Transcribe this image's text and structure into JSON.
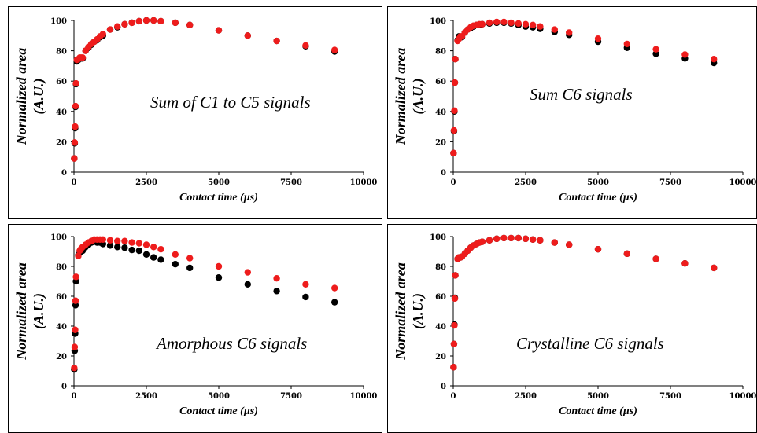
{
  "colors": {
    "series_black": "#000000",
    "series_red": "#ee1c1c"
  },
  "chart_data": [
    {
      "type": "scatter",
      "title": "",
      "annotation": "Sum of C1 to C5 signals",
      "xlabel": "Contact time (µs)",
      "ylabel": [
        "Normalized area",
        "(A.U.)"
      ],
      "xlim": [
        0,
        10000
      ],
      "ylim": [
        0,
        100
      ],
      "xticks": [
        "0",
        "2500",
        "5000",
        "7500",
        "10000"
      ],
      "yticks": [
        "0",
        "20",
        "40",
        "60",
        "80",
        "100"
      ],
      "grid": false,
      "series": [
        {
          "color": "#000000",
          "points": [
            [
              10,
              9
            ],
            [
              25,
              19
            ],
            [
              40,
              29
            ],
            [
              55,
              43
            ],
            [
              70,
              58
            ],
            [
              100,
              73
            ],
            [
              150,
              74
            ],
            [
              200,
              75
            ],
            [
              250,
              75
            ],
            [
              300,
              75
            ],
            [
              400,
              80
            ],
            [
              500,
              82
            ],
            [
              600,
              84
            ],
            [
              700,
              86
            ],
            [
              800,
              87
            ],
            [
              900,
              89
            ],
            [
              1000,
              90
            ],
            [
              1250,
              94
            ],
            [
              1500,
              95.5
            ],
            [
              1750,
              97.5
            ],
            [
              2000,
              98.5
            ],
            [
              2250,
              99.5
            ],
            [
              2500,
              100
            ],
            [
              2750,
              100
            ],
            [
              3000,
              99.5
            ],
            [
              3500,
              98.5
            ],
            [
              4000,
              97
            ],
            [
              5000,
              93.5
            ],
            [
              6000,
              90
            ],
            [
              7000,
              86.5
            ],
            [
              8000,
              83
            ],
            [
              9000,
              79.5
            ]
          ]
        },
        {
          "color": "#ee1c1c",
          "points": [
            [
              10,
              9
            ],
            [
              25,
              19.5
            ],
            [
              40,
              30
            ],
            [
              55,
              43.5
            ],
            [
              70,
              58.5
            ],
            [
              100,
              74
            ],
            [
              150,
              74.5
            ],
            [
              200,
              75.5
            ],
            [
              250,
              75.5
            ],
            [
              300,
              75.5
            ],
            [
              400,
              80
            ],
            [
              500,
              82.5
            ],
            [
              600,
              84.5
            ],
            [
              700,
              86
            ],
            [
              800,
              87.5
            ],
            [
              900,
              89.5
            ],
            [
              1000,
              91
            ],
            [
              1250,
              94
            ],
            [
              1500,
              96
            ],
            [
              1750,
              97.5
            ],
            [
              2000,
              98.5
            ],
            [
              2250,
              99.5
            ],
            [
              2500,
              100
            ],
            [
              2750,
              100
            ],
            [
              3000,
              99.5
            ],
            [
              3500,
              98.5
            ],
            [
              4000,
              97
            ],
            [
              5000,
              93.5
            ],
            [
              6000,
              90
            ],
            [
              7000,
              86.5
            ],
            [
              8000,
              83.5
            ],
            [
              9000,
              80.5
            ]
          ]
        }
      ]
    },
    {
      "type": "scatter",
      "title": "",
      "annotation": "Sum C6 signals",
      "xlabel": "Contact time (µs)",
      "ylabel": [
        "Normalized area",
        "(A.U.)"
      ],
      "xlim": [
        0,
        10000
      ],
      "ylim": [
        0,
        100
      ],
      "xticks": [
        "0",
        "2500",
        "5000",
        "7500",
        "10000"
      ],
      "yticks": [
        "0",
        "20",
        "40",
        "60",
        "80",
        "100"
      ],
      "grid": false,
      "series": [
        {
          "color": "#000000",
          "points": [
            [
              10,
              12.5
            ],
            [
              25,
              27
            ],
            [
              40,
              40
            ],
            [
              55,
              59
            ],
            [
              70,
              74.5
            ],
            [
              150,
              87
            ],
            [
              200,
              89.5
            ],
            [
              250,
              89
            ],
            [
              300,
              89
            ],
            [
              400,
              92
            ],
            [
              500,
              94
            ],
            [
              600,
              95
            ],
            [
              700,
              96
            ],
            [
              800,
              97
            ],
            [
              900,
              97
            ],
            [
              1000,
              97.5
            ],
            [
              1250,
              98
            ],
            [
              1500,
              98.5
            ],
            [
              1750,
              98.5
            ],
            [
              2000,
              98
            ],
            [
              2250,
              97
            ],
            [
              2500,
              96
            ],
            [
              2750,
              95.5
            ],
            [
              3000,
              94.5
            ],
            [
              3500,
              92.5
            ],
            [
              4000,
              90.5
            ],
            [
              5000,
              86
            ],
            [
              6000,
              82
            ],
            [
              7000,
              78
            ],
            [
              8000,
              75
            ],
            [
              9000,
              72
            ]
          ]
        },
        {
          "color": "#ee1c1c",
          "points": [
            [
              10,
              12.5
            ],
            [
              25,
              27.5
            ],
            [
              40,
              40.5
            ],
            [
              55,
              59
            ],
            [
              70,
              74.5
            ],
            [
              150,
              86.5
            ],
            [
              200,
              88
            ],
            [
              250,
              89.5
            ],
            [
              300,
              89.5
            ],
            [
              400,
              92
            ],
            [
              500,
              94
            ],
            [
              600,
              95.5
            ],
            [
              700,
              96.5
            ],
            [
              800,
              97
            ],
            [
              900,
              97.5
            ],
            [
              1000,
              97.5
            ],
            [
              1250,
              98.5
            ],
            [
              1500,
              99
            ],
            [
              1750,
              99
            ],
            [
              2000,
              98.5
            ],
            [
              2250,
              98
            ],
            [
              2500,
              97.5
            ],
            [
              2750,
              97
            ],
            [
              3000,
              96
            ],
            [
              3500,
              94
            ],
            [
              4000,
              92
            ],
            [
              5000,
              88
            ],
            [
              6000,
              84.5
            ],
            [
              7000,
              81
            ],
            [
              8000,
              77.5
            ],
            [
              9000,
              74.5
            ]
          ]
        }
      ]
    },
    {
      "type": "scatter",
      "title": "",
      "annotation": "Amorphous C6 signals",
      "xlabel": "Contact time (µs)",
      "ylabel": [
        "Normalized area",
        "(A.U.)"
      ],
      "xlim": [
        0,
        10000
      ],
      "ylim": [
        0,
        100
      ],
      "xticks": [
        "0",
        "2500",
        "5000",
        "7500",
        "10000"
      ],
      "yticks": [
        "0",
        "20",
        "40",
        "60",
        "80",
        "100"
      ],
      "grid": false,
      "series": [
        {
          "color": "#000000",
          "points": [
            [
              10,
              11
            ],
            [
              25,
              23.5
            ],
            [
              40,
              35
            ],
            [
              55,
              54
            ],
            [
              70,
              70
            ],
            [
              150,
              87.5
            ],
            [
              200,
              90
            ],
            [
              250,
              90
            ],
            [
              300,
              90.5
            ],
            [
              400,
              93
            ],
            [
              500,
              94.5
            ],
            [
              600,
              96
            ],
            [
              700,
              97
            ],
            [
              800,
              96
            ],
            [
              900,
              96
            ],
            [
              1000,
              95
            ],
            [
              1250,
              94
            ],
            [
              1500,
              93
            ],
            [
              1750,
              92.5
            ],
            [
              2000,
              91
            ],
            [
              2250,
              90.5
            ],
            [
              2500,
              88
            ],
            [
              2750,
              86
            ],
            [
              3000,
              84.5
            ],
            [
              3500,
              81.5
            ],
            [
              4000,
              79
            ],
            [
              5000,
              72.5
            ],
            [
              6000,
              68
            ],
            [
              7000,
              63.5
            ],
            [
              8000,
              59.5
            ],
            [
              9000,
              56
            ]
          ]
        },
        {
          "color": "#ee1c1c",
          "points": [
            [
              10,
              12
            ],
            [
              25,
              26
            ],
            [
              40,
              37.5
            ],
            [
              55,
              57
            ],
            [
              70,
              73
            ],
            [
              150,
              87
            ],
            [
              200,
              90.5
            ],
            [
              250,
              92
            ],
            [
              300,
              93
            ],
            [
              400,
              94.5
            ],
            [
              500,
              96
            ],
            [
              600,
              97
            ],
            [
              700,
              98
            ],
            [
              800,
              98
            ],
            [
              900,
              98
            ],
            [
              1000,
              98
            ],
            [
              1250,
              97.5
            ],
            [
              1500,
              97
            ],
            [
              1750,
              97
            ],
            [
              2000,
              96
            ],
            [
              2250,
              95.5
            ],
            [
              2500,
              94.5
            ],
            [
              2750,
              93
            ],
            [
              3000,
              91.5
            ],
            [
              3500,
              88
            ],
            [
              4000,
              85.5
            ],
            [
              5000,
              80
            ],
            [
              6000,
              76
            ],
            [
              7000,
              72
            ],
            [
              8000,
              68
            ],
            [
              9000,
              65.5
            ]
          ]
        }
      ]
    },
    {
      "type": "scatter",
      "title": "",
      "annotation": "Crystalline C6 signals",
      "xlabel": "Contact time (µs)",
      "ylabel": [
        "Normalized area",
        "(A.U.)"
      ],
      "xlim": [
        0,
        10000
      ],
      "ylim": [
        0,
        100
      ],
      "xticks": [
        "0",
        "2500",
        "5000",
        "7500",
        "10000"
      ],
      "yticks": [
        "0",
        "20",
        "40",
        "60",
        "80",
        "100"
      ],
      "grid": false,
      "series": [
        {
          "color": "#000000",
          "points": [
            [
              10,
              12.5
            ],
            [
              25,
              28
            ],
            [
              40,
              41
            ],
            [
              55,
              59
            ],
            [
              70,
              74
            ],
            [
              150,
              85
            ],
            [
              200,
              86
            ],
            [
              250,
              86
            ],
            [
              300,
              86.5
            ],
            [
              400,
              88.5
            ],
            [
              500,
              90.5
            ],
            [
              600,
              92.5
            ],
            [
              700,
              94
            ],
            [
              800,
              95
            ],
            [
              900,
              96
            ],
            [
              1000,
              96.5
            ],
            [
              1250,
              97.5
            ],
            [
              1500,
              98.5
            ],
            [
              1750,
              99
            ],
            [
              2000,
              99
            ],
            [
              2250,
              99
            ],
            [
              2500,
              98.5
            ],
            [
              2750,
              98
            ],
            [
              3000,
              97.5
            ],
            [
              3500,
              96
            ],
            [
              4000,
              94.5
            ],
            [
              5000,
              91.5
            ],
            [
              6000,
              88.5
            ],
            [
              7000,
              85
            ],
            [
              8000,
              82
            ],
            [
              9000,
              79
            ]
          ]
        },
        {
          "color": "#ee1c1c",
          "points": [
            [
              10,
              12.5
            ],
            [
              25,
              28
            ],
            [
              40,
              40.5
            ],
            [
              55,
              58.5
            ],
            [
              70,
              74
            ],
            [
              150,
              85
            ],
            [
              200,
              86
            ],
            [
              250,
              86
            ],
            [
              300,
              86.5
            ],
            [
              400,
              88.5
            ],
            [
              500,
              90.5
            ],
            [
              600,
              92.5
            ],
            [
              700,
              94
            ],
            [
              800,
              95
            ],
            [
              900,
              96
            ],
            [
              1000,
              96.5
            ],
            [
              1250,
              97.5
            ],
            [
              1500,
              98.5
            ],
            [
              1750,
              99
            ],
            [
              2000,
              99
            ],
            [
              2250,
              99
            ],
            [
              2500,
              98.5
            ],
            [
              2750,
              98
            ],
            [
              3000,
              97.5
            ],
            [
              3500,
              96
            ],
            [
              4000,
              94.5
            ],
            [
              5000,
              91.5
            ],
            [
              6000,
              88.5
            ],
            [
              7000,
              85
            ],
            [
              8000,
              82
            ],
            [
              9000,
              79
            ]
          ]
        }
      ]
    }
  ]
}
